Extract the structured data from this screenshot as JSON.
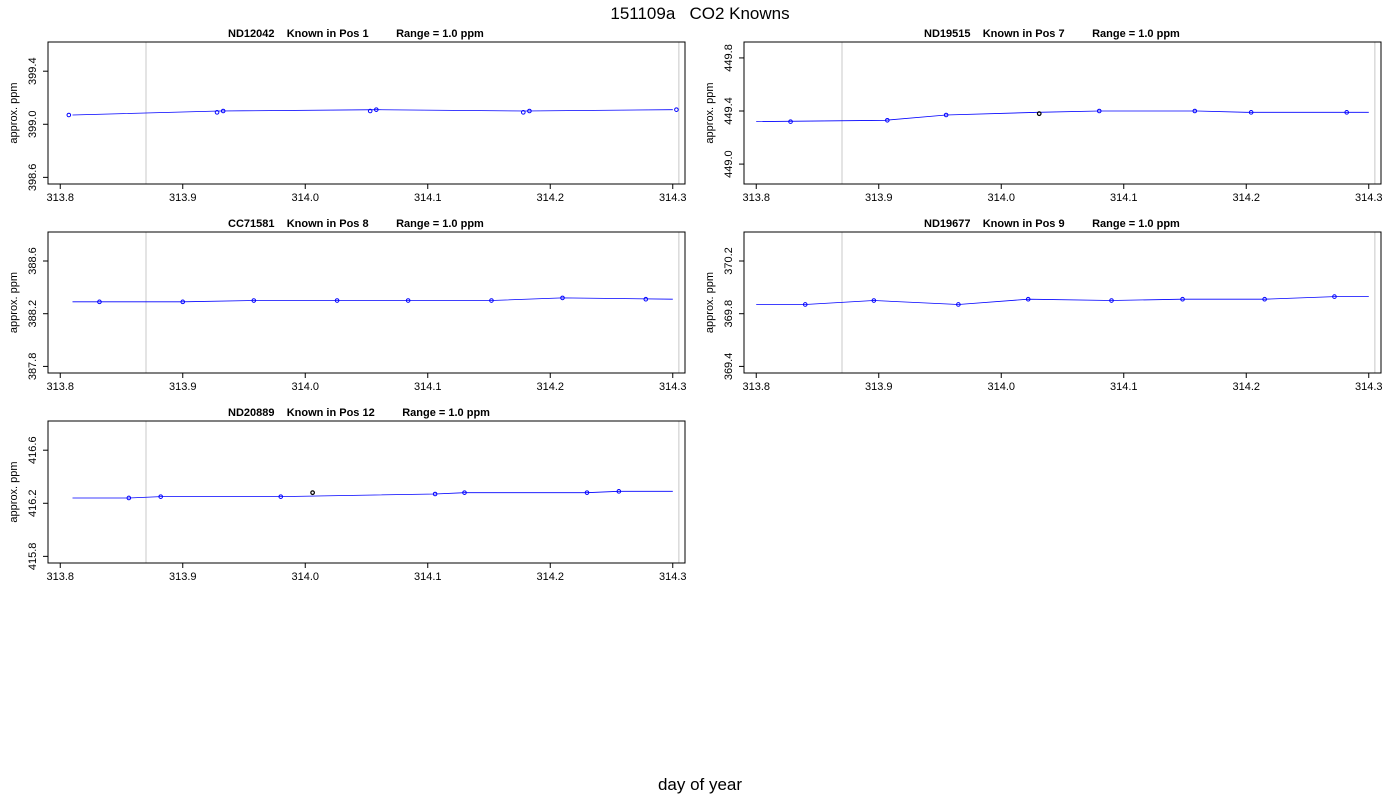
{
  "figure": {
    "title": "151109a   CO2 Knowns",
    "xlabel": "day of year"
  },
  "chart_data": [
    {
      "type": "line",
      "title": "ND12042    Known in Pos 1         Range = 1.0 ppm",
      "ylabel": "approx. ppm",
      "xlim": [
        313.79,
        314.31
      ],
      "ylim": [
        398.55,
        399.62
      ],
      "xticks": [
        "313.8",
        "313.9",
        "314.0",
        "314.1",
        "314.2",
        "314.3"
      ],
      "yticks": [
        "398.6",
        "399.0",
        "399.4"
      ],
      "vlines": [
        313.87,
        314.305
      ],
      "line": [
        [
          313.81,
          399.07
        ],
        [
          313.93,
          399.1
        ],
        [
          314.06,
          399.11
        ],
        [
          314.18,
          399.1
        ],
        [
          314.3,
          399.11
        ]
      ],
      "points": [
        [
          313.807,
          399.07
        ],
        [
          313.928,
          399.09
        ],
        [
          313.933,
          399.1
        ],
        [
          314.053,
          399.1
        ],
        [
          314.058,
          399.11
        ],
        [
          314.178,
          399.09
        ],
        [
          314.183,
          399.1
        ],
        [
          314.303,
          399.11
        ]
      ],
      "highlight": []
    },
    {
      "type": "line",
      "title": "ND19515    Known in Pos 7         Range = 1.0 ppm",
      "ylabel": "approx. ppm",
      "xlim": [
        313.79,
        314.31
      ],
      "ylim": [
        448.85,
        449.92
      ],
      "xticks": [
        "313.8",
        "313.9",
        "314.0",
        "314.1",
        "314.2",
        "314.3"
      ],
      "yticks": [
        "449.0",
        "449.4",
        "449.8"
      ],
      "vlines": [
        313.87,
        314.305
      ],
      "line": [
        [
          313.8,
          449.32
        ],
        [
          313.905,
          449.33
        ],
        [
          313.955,
          449.37
        ],
        [
          314.03,
          449.39
        ],
        [
          314.08,
          449.4
        ],
        [
          314.16,
          449.4
        ],
        [
          314.2,
          449.39
        ],
        [
          314.3,
          449.39
        ]
      ],
      "points": [
        [
          313.828,
          449.32
        ],
        [
          313.907,
          449.33
        ],
        [
          313.955,
          449.37
        ],
        [
          314.08,
          449.4
        ],
        [
          314.158,
          449.4
        ],
        [
          314.204,
          449.39
        ],
        [
          314.282,
          449.39
        ]
      ],
      "highlight": [
        [
          314.031,
          449.38
        ]
      ]
    },
    {
      "type": "line",
      "title": "CC71581    Known in Pos 8         Range = 1.0 ppm",
      "ylabel": "approx. ppm",
      "xlim": [
        313.79,
        314.31
      ],
      "ylim": [
        387.75,
        388.82
      ],
      "xticks": [
        "313.8",
        "313.9",
        "314.0",
        "314.1",
        "314.2",
        "314.3"
      ],
      "yticks": [
        "387.8",
        "388.2",
        "388.6"
      ],
      "vlines": [
        313.87,
        314.305
      ],
      "line": [
        [
          313.81,
          388.29
        ],
        [
          313.9,
          388.29
        ],
        [
          313.958,
          388.3
        ],
        [
          314.026,
          388.3
        ],
        [
          314.084,
          388.3
        ],
        [
          314.152,
          388.3
        ],
        [
          314.21,
          388.32
        ],
        [
          314.3,
          388.31
        ]
      ],
      "points": [
        [
          313.832,
          388.29
        ],
        [
          313.9,
          388.29
        ],
        [
          313.958,
          388.3
        ],
        [
          314.026,
          388.3
        ],
        [
          314.084,
          388.3
        ],
        [
          314.152,
          388.3
        ],
        [
          314.21,
          388.32
        ],
        [
          314.278,
          388.31
        ]
      ],
      "highlight": []
    },
    {
      "type": "line",
      "title": "ND19677    Known in Pos 9         Range = 1.0 ppm",
      "ylabel": "approx. ppm",
      "xlim": [
        313.79,
        314.31
      ],
      "ylim": [
        369.35,
        370.42
      ],
      "xticks": [
        "313.8",
        "313.9",
        "314.0",
        "314.1",
        "314.2",
        "314.3"
      ],
      "yticks": [
        "369.4",
        "369.8",
        "370.2"
      ],
      "vlines": [
        313.87,
        314.305
      ],
      "line": [
        [
          313.8,
          369.87
        ],
        [
          313.84,
          369.87
        ],
        [
          313.896,
          369.9
        ],
        [
          313.965,
          369.87
        ],
        [
          314.022,
          369.91
        ],
        [
          314.09,
          369.9
        ],
        [
          314.148,
          369.91
        ],
        [
          314.215,
          369.91
        ],
        [
          314.272,
          369.93
        ],
        [
          314.3,
          369.93
        ]
      ],
      "points": [
        [
          313.84,
          369.87
        ],
        [
          313.896,
          369.9
        ],
        [
          313.965,
          369.87
        ],
        [
          314.022,
          369.91
        ],
        [
          314.09,
          369.9
        ],
        [
          314.148,
          369.91
        ],
        [
          314.215,
          369.91
        ],
        [
          314.272,
          369.93
        ]
      ],
      "highlight": []
    },
    {
      "type": "line",
      "title": "ND20889    Known in Pos 12         Range = 1.0 ppm",
      "ylabel": "approx. ppm",
      "xlim": [
        313.79,
        314.31
      ],
      "ylim": [
        415.75,
        416.82
      ],
      "xticks": [
        "313.8",
        "313.9",
        "314.0",
        "314.1",
        "314.2",
        "314.3"
      ],
      "yticks": [
        "415.8",
        "416.2",
        "416.6"
      ],
      "vlines": [
        313.87,
        314.305
      ],
      "line": [
        [
          313.81,
          416.24
        ],
        [
          313.856,
          416.24
        ],
        [
          313.882,
          416.25
        ],
        [
          313.98,
          416.25
        ],
        [
          314.106,
          416.27
        ],
        [
          314.13,
          416.28
        ],
        [
          314.23,
          416.28
        ],
        [
          314.256,
          416.29
        ],
        [
          314.3,
          416.29
        ]
      ],
      "points": [
        [
          313.856,
          416.24
        ],
        [
          313.882,
          416.25
        ],
        [
          313.98,
          416.25
        ],
        [
          314.106,
          416.27
        ],
        [
          314.13,
          416.28
        ],
        [
          314.23,
          416.28
        ],
        [
          314.256,
          416.29
        ]
      ],
      "highlight": [
        [
          314.006,
          416.28
        ]
      ]
    }
  ]
}
